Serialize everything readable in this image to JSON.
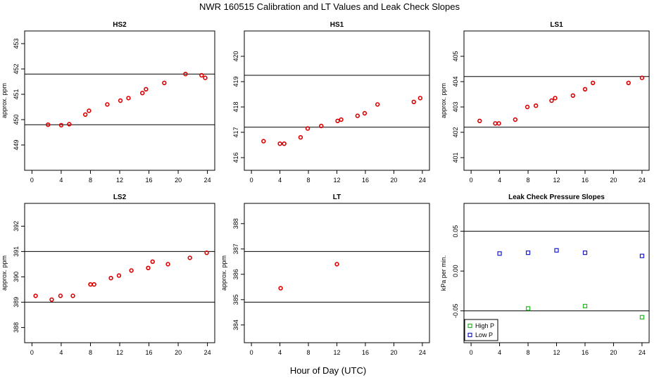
{
  "figure": {
    "title": "NWR  160515  Calibration and LT Values and Leak Check Slopes",
    "xlabel": "Hour of Day (UTC)"
  },
  "colors": {
    "point": "#dd0000",
    "high_p": "#22bb22",
    "low_p": "#1a1acc",
    "line": "#000000"
  },
  "chart_data": [
    {
      "type": "scatter",
      "title": "HS2",
      "ylabel": "approx. ppm",
      "xlim": [
        -1,
        25
      ],
      "ylim": [
        448.0,
        453.5
      ],
      "xticks": [
        0,
        4,
        8,
        12,
        16,
        20,
        24
      ],
      "yticks": [
        449,
        450,
        451,
        452,
        453
      ],
      "hlines": [
        449.8,
        451.8
      ],
      "series": [
        {
          "color": "#dd0000",
          "points": [
            [
              2.2,
              449.8
            ],
            [
              4.0,
              449.78
            ],
            [
              5.1,
              449.82
            ],
            [
              7.3,
              450.2
            ],
            [
              7.8,
              450.35
            ],
            [
              10.3,
              450.6
            ],
            [
              12.1,
              450.75
            ],
            [
              13.2,
              450.85
            ],
            [
              15.1,
              451.05
            ],
            [
              15.6,
              451.2
            ],
            [
              18.1,
              451.45
            ],
            [
              21.0,
              451.8
            ],
            [
              23.2,
              451.75
            ],
            [
              23.7,
              451.65
            ]
          ]
        }
      ]
    },
    {
      "type": "scatter",
      "title": "HS1",
      "ylabel": "",
      "xlim": [
        -1,
        25
      ],
      "ylim": [
        415.5,
        421.0
      ],
      "xticks": [
        0,
        4,
        8,
        12,
        16,
        20,
        24
      ],
      "yticks": [
        416,
        417,
        418,
        419,
        420
      ],
      "hlines": [
        417.2,
        419.25
      ],
      "series": [
        {
          "color": "#dd0000",
          "points": [
            [
              1.7,
              416.65
            ],
            [
              4.0,
              416.55
            ],
            [
              4.6,
              416.55
            ],
            [
              6.9,
              416.8
            ],
            [
              7.9,
              417.15
            ],
            [
              9.8,
              417.25
            ],
            [
              12.1,
              417.45
            ],
            [
              12.6,
              417.5
            ],
            [
              14.9,
              417.65
            ],
            [
              15.9,
              417.75
            ],
            [
              17.7,
              418.1
            ],
            [
              22.8,
              418.2
            ],
            [
              23.7,
              418.35
            ]
          ]
        }
      ]
    },
    {
      "type": "scatter",
      "title": "LS1",
      "ylabel": "approx. ppm",
      "xlim": [
        -1,
        25
      ],
      "ylim": [
        400.5,
        406.0
      ],
      "xticks": [
        0,
        4,
        8,
        12,
        16,
        20,
        24
      ],
      "yticks": [
        401,
        402,
        403,
        404,
        405
      ],
      "hlines": [
        402.2,
        404.2
      ],
      "series": [
        {
          "color": "#dd0000",
          "points": [
            [
              1.2,
              402.45
            ],
            [
              3.4,
              402.35
            ],
            [
              3.9,
              402.35
            ],
            [
              6.2,
              402.5
            ],
            [
              7.9,
              403.0
            ],
            [
              9.1,
              403.05
            ],
            [
              11.3,
              403.25
            ],
            [
              11.8,
              403.35
            ],
            [
              14.3,
              403.45
            ],
            [
              16.0,
              403.7
            ],
            [
              17.1,
              403.95
            ],
            [
              22.1,
              403.95
            ],
            [
              24.0,
              404.15
            ]
          ]
        }
      ]
    },
    {
      "type": "scatter",
      "title": "LS2",
      "ylabel": "approx. ppm",
      "xlim": [
        -1,
        25
      ],
      "ylim": [
        387.4,
        392.9
      ],
      "xticks": [
        0,
        4,
        8,
        12,
        16,
        20,
        24
      ],
      "yticks": [
        388,
        389,
        390,
        391,
        392
      ],
      "hlines": [
        389.0,
        391.0
      ],
      "series": [
        {
          "color": "#dd0000",
          "points": [
            [
              0.5,
              389.25
            ],
            [
              2.7,
              389.1
            ],
            [
              3.9,
              389.25
            ],
            [
              5.6,
              389.25
            ],
            [
              8.0,
              389.7
            ],
            [
              8.5,
              389.7
            ],
            [
              10.8,
              389.95
            ],
            [
              11.9,
              390.05
            ],
            [
              13.6,
              390.25
            ],
            [
              15.9,
              390.35
            ],
            [
              16.5,
              390.6
            ],
            [
              18.6,
              390.5
            ],
            [
              21.6,
              390.75
            ],
            [
              23.9,
              390.95
            ]
          ]
        }
      ]
    },
    {
      "type": "scatter",
      "title": "LT",
      "ylabel": "approx. ppm",
      "xlim": [
        -1,
        25
      ],
      "ylim": [
        383.3,
        388.8
      ],
      "xticks": [
        0,
        4,
        8,
        12,
        16,
        20,
        24
      ],
      "yticks": [
        384,
        385,
        386,
        387,
        388
      ],
      "hlines": [
        384.9,
        386.9
      ],
      "series": [
        {
          "color": "#dd0000",
          "points": [
            [
              4.1,
              385.45
            ],
            [
              12.0,
              386.4
            ]
          ]
        }
      ]
    },
    {
      "type": "scatter",
      "title": "Leak Check Pressure Slopes",
      "ylabel": "kPa per min.",
      "xlim": [
        -1,
        25
      ],
      "ylim": [
        -0.09,
        0.085
      ],
      "xticks": [
        0,
        4,
        8,
        12,
        16,
        20,
        24
      ],
      "yticks": [
        -0.05,
        0.0,
        0.05
      ],
      "ytick_labels": [
        "-0.05",
        "0.00",
        "0.05"
      ],
      "ytick_rotate": true,
      "hlines": [
        -0.05,
        0.05
      ],
      "legend": {
        "position": "bottom-left"
      },
      "series": [
        {
          "name": "High P",
          "color": "#22bb22",
          "points": [
            [
              8.0,
              -0.047
            ],
            [
              16.0,
              -0.044
            ],
            [
              24.0,
              -0.058
            ]
          ]
        },
        {
          "name": "Low P",
          "color": "#1a1acc",
          "points": [
            [
              4.0,
              0.022
            ],
            [
              8.0,
              0.023
            ],
            [
              12.0,
              0.026
            ],
            [
              16.0,
              0.023
            ],
            [
              24.0,
              0.019
            ]
          ]
        }
      ]
    }
  ]
}
